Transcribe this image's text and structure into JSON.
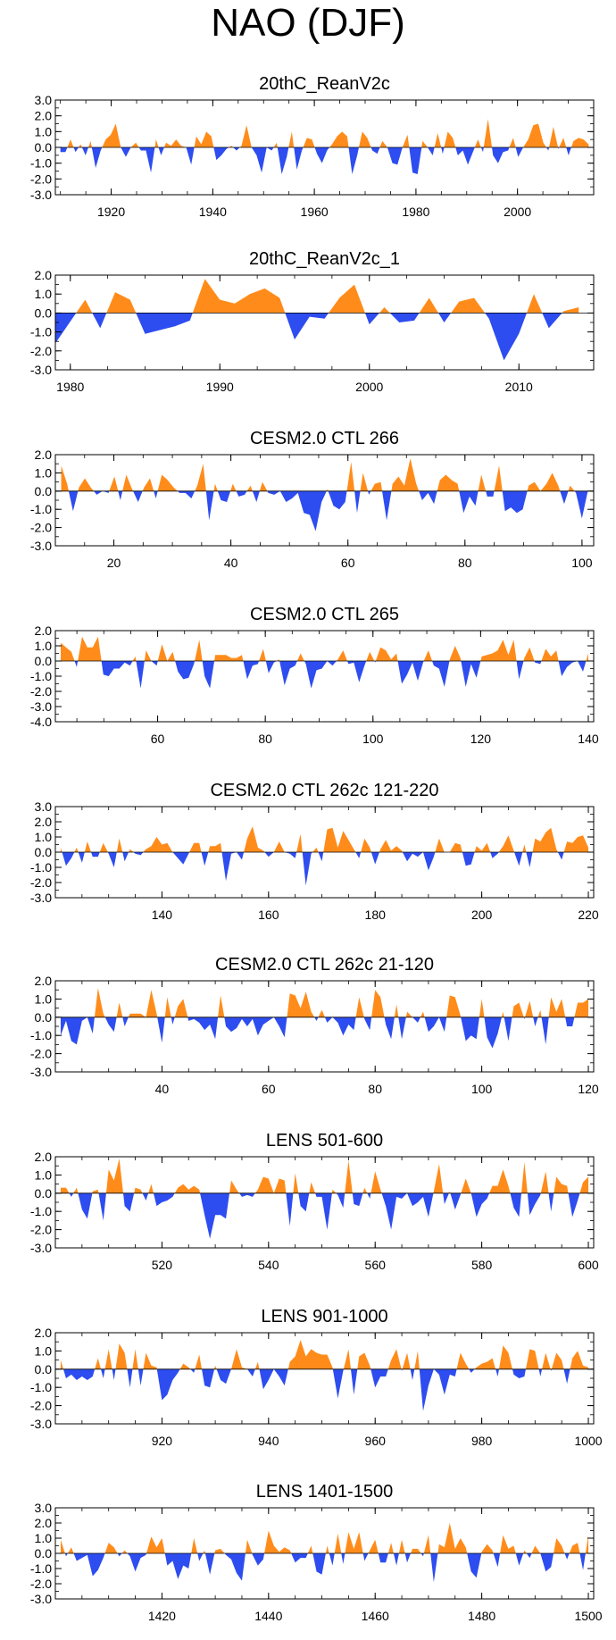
{
  "figure_title": "NAO (DJF)",
  "colors": {
    "positive": "#ff8c1a",
    "negative": "#2d4df0",
    "axis": "#000000"
  },
  "chart_data": [
    {
      "type": "area",
      "title": "20thC_ReanV2c",
      "xlim": [
        1909,
        2015
      ],
      "ylim": [
        -3,
        3
      ],
      "yticks": [
        "3.0",
        "2.0",
        "1.0",
        "0.0",
        "-1.0",
        "-2.0",
        "-3.0"
      ],
      "xticks": [
        1920,
        1940,
        1960,
        1980,
        2000
      ],
      "seed": 11,
      "length": 106
    },
    {
      "type": "area",
      "title": "20thC_ReanV2c_1",
      "xlim": [
        1979,
        2015
      ],
      "ylim": [
        -3,
        2
      ],
      "yticks": [
        "2.0",
        "1.0",
        "0.0",
        "-1.0",
        "-2.0",
        "-3.0"
      ],
      "xticks": [
        1980,
        1990,
        2000,
        2010
      ],
      "x": [
        1979,
        1981,
        1982,
        1983,
        1984,
        1985,
        1986,
        1987,
        1988,
        1989,
        1990,
        1991,
        1992,
        1993,
        1994,
        1995,
        1996,
        1997,
        1998,
        1999,
        2000,
        2001,
        2002,
        2003,
        2004,
        2005,
        2006,
        2007,
        2008,
        2009,
        2010,
        2011,
        2012,
        2013,
        2014
      ],
      "values": [
        -1.6,
        0.7,
        -0.8,
        1.1,
        0.7,
        -1.1,
        -0.9,
        -0.7,
        -0.4,
        1.8,
        0.7,
        0.5,
        1.0,
        1.3,
        0.8,
        -1.4,
        -0.2,
        -0.3,
        0.8,
        1.5,
        -0.6,
        0.3,
        -0.5,
        -0.4,
        0.8,
        -0.5,
        0.6,
        0.8,
        -0.3,
        -2.5,
        -1.1,
        1.0,
        -0.8,
        0.1,
        0.3
      ]
    },
    {
      "type": "area",
      "title": "CESM2.0 CTL 266",
      "xlim": [
        10,
        102
      ],
      "ylim": [
        -3,
        2
      ],
      "yticks": [
        "2.0",
        "1.0",
        "0.0",
        "-1.0",
        "-2.0",
        "-3.0"
      ],
      "xticks": [
        20,
        40,
        60,
        80,
        100
      ],
      "seed": 23,
      "length": 90
    },
    {
      "type": "area",
      "title": "CESM2.0 CTL 265",
      "xlim": [
        41,
        141
      ],
      "ylim": [
        -4,
        2
      ],
      "yticks": [
        "2.0",
        "1.0",
        "0.0",
        "-1.0",
        "-2.0",
        "-3.0",
        "-4.0"
      ],
      "xticks": [
        60,
        80,
        100,
        120,
        140
      ],
      "seed": 37,
      "length": 100
    },
    {
      "type": "area",
      "title": "CESM2.0 CTL 262c 121-220",
      "xlim": [
        120,
        221
      ],
      "ylim": [
        -3,
        3
      ],
      "yticks": [
        "3.0",
        "2.0",
        "1.0",
        "0.0",
        "-1.0",
        "-2.0",
        "-3.0"
      ],
      "xticks": [
        140,
        160,
        180,
        200,
        220
      ],
      "seed": 41,
      "length": 100
    },
    {
      "type": "area",
      "title": "CESM2.0 CTL 262c 21-120",
      "xlim": [
        20,
        121
      ],
      "ylim": [
        -3,
        2
      ],
      "yticks": [
        "2.0",
        "1.0",
        "0.0",
        "-1.0",
        "-2.0",
        "-3.0"
      ],
      "xticks": [
        40,
        60,
        80,
        100,
        120
      ],
      "seed": 53,
      "length": 100
    },
    {
      "type": "area",
      "title": "LENS 501-600",
      "xlim": [
        500,
        601
      ],
      "ylim": [
        -3,
        2
      ],
      "yticks": [
        "2.0",
        "1.0",
        "0.0",
        "-1.0",
        "-2.0",
        "-3.0"
      ],
      "xticks": [
        520,
        540,
        560,
        580,
        600
      ],
      "seed": 67,
      "length": 100
    },
    {
      "type": "area",
      "title": "LENS 901-1000",
      "xlim": [
        900,
        1001
      ],
      "ylim": [
        -3,
        2
      ],
      "yticks": [
        "2.0",
        "1.0",
        "0.0",
        "-1.0",
        "-2.0",
        "-3.0"
      ],
      "xticks": [
        920,
        940,
        960,
        980,
        1000
      ],
      "seed": 79,
      "length": 100
    },
    {
      "type": "area",
      "title": "LENS 1401-1500",
      "xlim": [
        1400,
        1501
      ],
      "ylim": [
        -3,
        3
      ],
      "yticks": [
        "3.0",
        "2.0",
        "1.0",
        "0.0",
        "-1.0",
        "-2.0",
        "-3.0"
      ],
      "xticks": [
        1420,
        1440,
        1460,
        1480,
        1500
      ],
      "seed": 97,
      "length": 100
    }
  ]
}
